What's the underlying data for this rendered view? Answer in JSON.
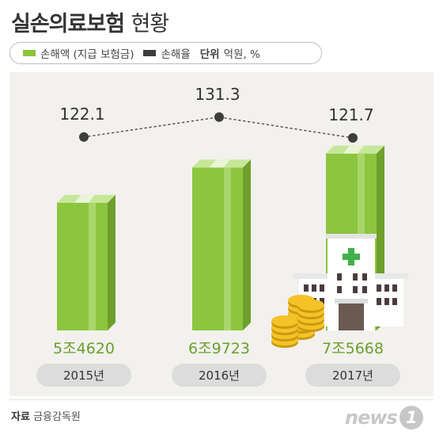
{
  "title": {
    "main": "실손의료보험",
    "sub": "현황"
  },
  "legend": {
    "bar_label": "손해액 (지급 보험금)",
    "line_label": "손해율",
    "unit_label": "단위",
    "unit_value": "억원, %",
    "bar_color": "#8cc63e",
    "line_color": "#3d3d3d"
  },
  "source": {
    "label": "자료",
    "value": "금융감독원"
  },
  "logo": {
    "text": "news",
    "mark": "1"
  },
  "chart_data": {
    "type": "bar",
    "categories": [
      "2015년",
      "2016년",
      "2017년"
    ],
    "series": [
      {
        "name": "손해액 (지급 보험금)",
        "type": "bar",
        "values": [
          54620,
          69723,
          75668
        ],
        "labels": [
          "5조4620",
          "6조9723",
          "7조5668"
        ]
      },
      {
        "name": "손해율",
        "type": "line",
        "values": [
          122.1,
          131.3,
          121.7
        ],
        "labels": [
          "122.1",
          "131.3",
          "121.7"
        ]
      }
    ]
  }
}
